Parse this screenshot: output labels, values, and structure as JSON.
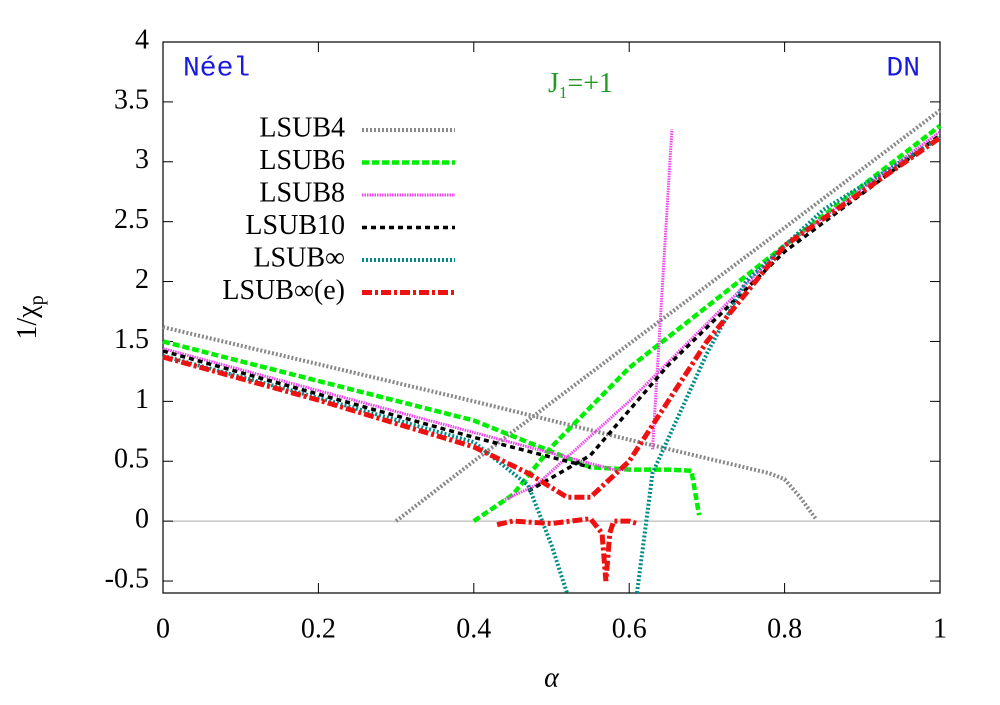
{
  "chart_data": {
    "type": "line",
    "annotations": [
      {
        "text": "Néel",
        "color": "#1a1adf"
      },
      {
        "text": "DN",
        "color": "#1a1adf"
      },
      {
        "base": "J",
        "sub": "1",
        "rest": "=+1",
        "color": "#229922"
      }
    ],
    "xlabel": "α",
    "ylabel": {
      "base": "1/χ",
      "sub": "p"
    },
    "xlim": [
      0,
      1
    ],
    "ylim": [
      -0.6,
      4
    ],
    "xticks": [
      0,
      0.2,
      0.4,
      0.6,
      0.8,
      1
    ],
    "yticks": [
      -0.5,
      0,
      0.5,
      1,
      1.5,
      2,
      2.5,
      3,
      3.5,
      4
    ],
    "legend": "top-left",
    "series": [
      {
        "name": "LSUB4",
        "color": "#888888",
        "x": [
          0,
          0.2,
          0.4,
          0.6,
          0.78,
          0.8,
          0.82,
          0.84,
          null,
          0.3,
          0.4,
          0.6,
          0.8,
          1
        ],
        "values": [
          1.62,
          1.31,
          1.0,
          0.68,
          0.4,
          0.35,
          0.2,
          0.02,
          null,
          0.0,
          0.5,
          1.48,
          2.45,
          3.43
        ]
      },
      {
        "name": "LSUB6",
        "color": "#00ee00",
        "x": [
          0,
          0.2,
          0.4,
          0.55,
          0.6,
          0.65,
          0.68,
          0.69,
          null,
          0.4,
          0.45,
          0.5,
          0.6,
          0.8,
          1
        ],
        "values": [
          1.5,
          1.17,
          0.84,
          0.45,
          0.43,
          0.43,
          0.42,
          0.05,
          null,
          0.0,
          0.22,
          0.62,
          1.28,
          2.3,
          3.3
        ]
      },
      {
        "name": "LSUB8",
        "color": "#ee44ee",
        "x": [
          0,
          0.2,
          0.4,
          0.58,
          0.6,
          null,
          0.63,
          0.655,
          null,
          0.44,
          0.48,
          0.6,
          0.7,
          0.8,
          1
        ],
        "values": [
          1.44,
          1.09,
          0.74,
          0.43,
          0.43,
          null,
          0.6,
          3.27,
          null,
          0.18,
          0.3,
          1.0,
          1.65,
          2.3,
          3.25
        ]
      },
      {
        "name": "LSUB10",
        "color": "#000000",
        "x": [
          0,
          0.2,
          0.4,
          0.55,
          null,
          0.47,
          0.55,
          0.65,
          0.8,
          1
        ],
        "values": [
          1.42,
          1.06,
          0.7,
          0.45,
          null,
          0.25,
          0.55,
          1.3,
          2.25,
          3.22
        ]
      },
      {
        "name": "LSUB∞",
        "color": "#008b8b",
        "x": [
          0,
          0.2,
          0.4,
          0.47,
          0.5,
          0.52,
          null,
          0.61,
          0.63,
          0.7,
          0.75,
          0.85,
          1
        ],
        "values": [
          1.38,
          1.03,
          0.66,
          0.3,
          -0.2,
          -0.6,
          null,
          -0.6,
          0.4,
          1.4,
          2.0,
          2.6,
          3.2
        ]
      },
      {
        "name": "LSUB∞(e)",
        "color": "#ee1111",
        "x": [
          0,
          0.2,
          0.4,
          0.47,
          0.52,
          0.55,
          0.6,
          0.7,
          0.8,
          1,
          null,
          0.43,
          0.45,
          0.5,
          0.55,
          0.565,
          0.57,
          0.575,
          0.58,
          0.6,
          0.61
        ],
        "values": [
          1.37,
          1.01,
          0.62,
          0.4,
          0.2,
          0.2,
          0.5,
          1.5,
          2.3,
          3.2,
          null,
          -0.03,
          0.0,
          -0.02,
          0.02,
          -0.1,
          -0.5,
          -0.1,
          0.0,
          0.0,
          -0.02
        ]
      }
    ]
  }
}
